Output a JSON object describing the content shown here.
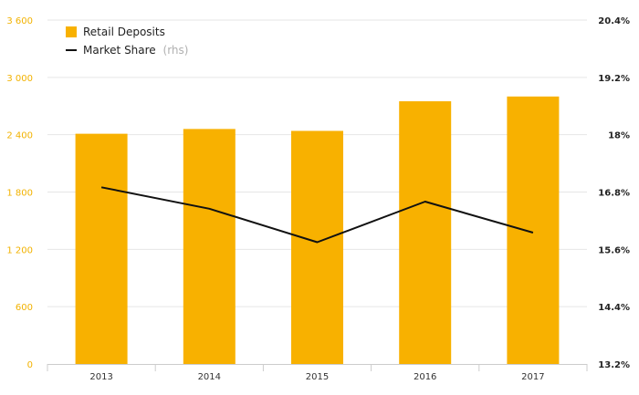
{
  "chart_data": {
    "type": "bar",
    "categories": [
      "2013",
      "2014",
      "2015",
      "2016",
      "2017"
    ],
    "series": [
      {
        "name": "Retail Deposits",
        "type": "bar",
        "axis": "left",
        "color": "#f8b100",
        "values": [
          2410,
          2460,
          2440,
          2750,
          2800
        ]
      },
      {
        "name": "Market Share",
        "name_suffix": "(rhs)",
        "type": "line",
        "axis": "right",
        "color": "#111111",
        "values": [
          16.9,
          16.45,
          15.75,
          16.6,
          15.95
        ]
      }
    ],
    "y_left": {
      "ylim": [
        0,
        3600
      ],
      "ticks": [
        0,
        600,
        1200,
        1800,
        2400,
        3000,
        3600
      ],
      "tick_labels": [
        "0",
        "600",
        "1 200",
        "1 800",
        "2 400",
        "3 000",
        "3 600"
      ],
      "color": "#f2b200"
    },
    "y_right": {
      "ylim": [
        13.2,
        20.4
      ],
      "ticks": [
        13.2,
        14.4,
        15.6,
        16.8,
        18.0,
        19.2,
        20.4
      ],
      "tick_labels": [
        "13.2%",
        "14.4%",
        "15.6%",
        "16.8%",
        "18%",
        "19.2%",
        "20.4%"
      ]
    },
    "grid": true,
    "legend": "top-left"
  }
}
